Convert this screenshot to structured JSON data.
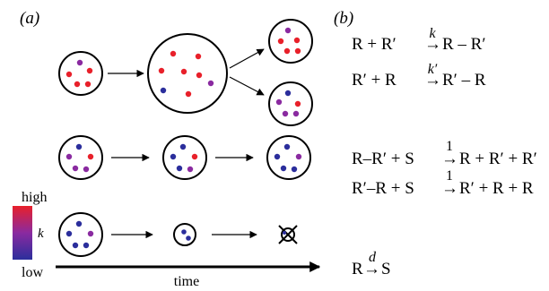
{
  "panel_a": {
    "label": "(a)",
    "colorbar": {
      "high_label": "high",
      "low_label": "low",
      "variable_label": "k",
      "color_high": "#e8202a",
      "color_mid": "#8a2aa0",
      "color_low": "#2b2e9c"
    },
    "time_label": "time"
  },
  "panel_b": {
    "label": "(b)",
    "reactions": [
      {
        "lhs": "R + R′",
        "rate": "k",
        "rhs": "R – R′"
      },
      {
        "lhs": "R′ + R",
        "rate": "k′",
        "rhs": "R′ – R"
      },
      {
        "lhs": "R–R′ + S",
        "rate": "1",
        "rhs": "R + R′ + R′"
      },
      {
        "lhs": "R′–R + S",
        "rate": "1",
        "rhs": "R′ + R + R"
      },
      {
        "lhs": "R",
        "rate": "d",
        "rhs": "S"
      }
    ]
  },
  "colors": {
    "red": "#e8202a",
    "purple": "#8a2aa0",
    "blue": "#2b2e9c"
  }
}
